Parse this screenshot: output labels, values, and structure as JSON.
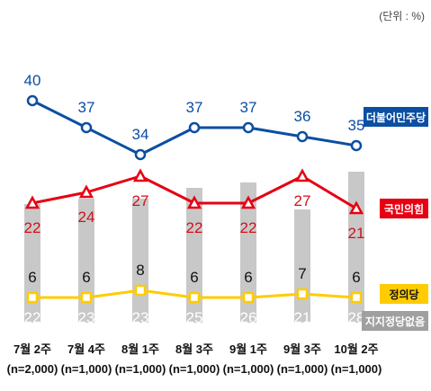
{
  "chart_data": {
    "type": "line",
    "unit_note": "(단위 : %)",
    "categories": [
      {
        "week": "7월 2주",
        "sample": "(n=2,000)"
      },
      {
        "week": "7월 4주",
        "sample": "(n=1,000)"
      },
      {
        "week": "8월 1주",
        "sample": "(n=1,000)"
      },
      {
        "week": "8월 3주",
        "sample": "(n=1,000)"
      },
      {
        "week": "9월 1주",
        "sample": "(n=1,000)"
      },
      {
        "week": "9월 3주",
        "sample": "(n=1,000)"
      },
      {
        "week": "10월 2주",
        "sample": "(n=1,000)"
      }
    ],
    "series": [
      {
        "name": "더불어민주당",
        "values": [
          40,
          37,
          34,
          37,
          37,
          36,
          35
        ],
        "color": "#0b4ea2",
        "marker": "circle"
      },
      {
        "name": "국민의힘",
        "values": [
          22,
          24,
          27,
          22,
          22,
          27,
          21
        ],
        "color": "#e60012",
        "marker": "triangle"
      },
      {
        "name": "정의당",
        "values": [
          6,
          6,
          8,
          6,
          6,
          7,
          6
        ],
        "color": "#ffcc00",
        "marker": "square"
      },
      {
        "name": "지지정당없음",
        "values": [
          22,
          23,
          23,
          25,
          26,
          21,
          28
        ],
        "color": "#c8c8c8",
        "marker": "bar"
      }
    ],
    "grid": false,
    "legend": "right"
  }
}
